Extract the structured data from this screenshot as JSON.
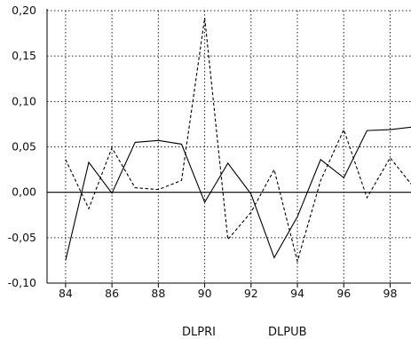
{
  "chart_data": {
    "type": "line",
    "title": "",
    "xlabel": "",
    "ylabel": "",
    "x": [
      84,
      85,
      86,
      87,
      88,
      89,
      90,
      91,
      92,
      93,
      94,
      95,
      96,
      97,
      98,
      99
    ],
    "x_ticks": [
      "84",
      "86",
      "88",
      "90",
      "92",
      "94",
      "96",
      "98"
    ],
    "y_ticks": [
      "0,20",
      "0,15",
      "0,10",
      "0,05",
      "0,00",
      "-0,05",
      "-0,10"
    ],
    "xlim": [
      83.2,
      98.9
    ],
    "ylim": [
      -0.1,
      0.2
    ],
    "grid": true,
    "zero_line": true,
    "legend_position": "bottom",
    "series": [
      {
        "name": "DLPRI",
        "style": "solid",
        "color": "#000000",
        "values": [
          -0.075,
          0.033,
          -0.001,
          0.055,
          0.057,
          0.053,
          -0.011,
          0.032,
          -0.002,
          -0.072,
          -0.027,
          0.036,
          0.016,
          0.068,
          0.069,
          0.072
        ]
      },
      {
        "name": "DLPUB",
        "style": "dashed",
        "color": "#000000",
        "values": [
          0.036,
          -0.018,
          0.049,
          0.005,
          0.003,
          0.013,
          0.192,
          -0.052,
          -0.022,
          0.025,
          -0.076,
          0.013,
          0.069,
          -0.006,
          0.038,
          0.006
        ]
      }
    ]
  }
}
